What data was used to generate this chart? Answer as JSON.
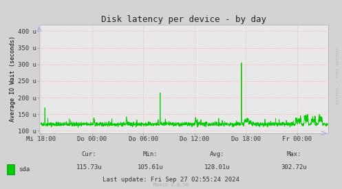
{
  "title": "Disk latency per device - by day",
  "ylabel": "Average IO Wait (seconds)",
  "background_color": "#d3d3d3",
  "plot_bg_color": "#e8e8e8",
  "grid_color": "#ff9999",
  "line_color": "#00cc00",
  "ytick_labels": [
    "100 u",
    "150 u",
    "200 u",
    "250 u",
    "300 u",
    "350 u",
    "400 u"
  ],
  "ytick_values": [
    100,
    150,
    200,
    250,
    300,
    350,
    400
  ],
  "ylim": [
    93,
    420
  ],
  "xtick_labels": [
    "Mi 18:00",
    "Do 00:00",
    "Do 06:00",
    "Do 12:00",
    "Do 18:00",
    "Fr 00:00"
  ],
  "xtick_positions": [
    0,
    360,
    720,
    1080,
    1440,
    1800
  ],
  "xlim": [
    -10,
    2020
  ],
  "legend_label": "sda",
  "legend_color": "#00cc00",
  "watermark": "RRDTOOL / TOBI OETIKER",
  "title_fontsize": 9,
  "axis_fontsize": 6.5,
  "footer_fontsize": 6.5
}
